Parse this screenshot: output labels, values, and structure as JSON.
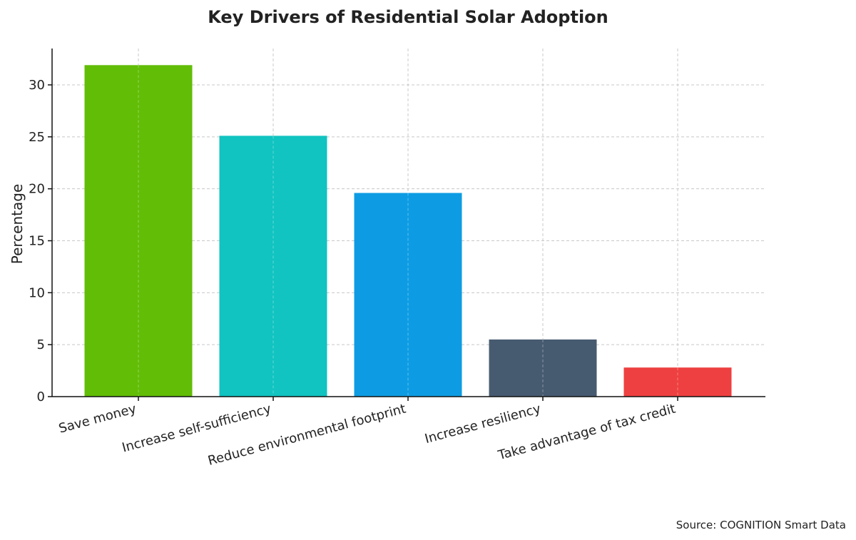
{
  "chart_data": {
    "type": "bar",
    "title": "Key Drivers of Residential Solar Adoption",
    "xlabel": "",
    "ylabel": "Percentage",
    "ylim": [
      0,
      33.5
    ],
    "yticks": [
      0,
      5,
      10,
      15,
      20,
      25,
      30
    ],
    "grid": true,
    "categories": [
      "Save money",
      "Increase self-sufficiency",
      "Reduce environmental footprint",
      "Increase resiliency",
      "Take advantage of tax credit"
    ],
    "values": [
      31.9,
      25.1,
      19.6,
      5.5,
      2.8
    ],
    "colors": [
      "#61bd06",
      "#11c3c1",
      "#0d9ce3",
      "#475b70",
      "#ee4040"
    ]
  },
  "source": "Source: COGNITION Smart Data"
}
